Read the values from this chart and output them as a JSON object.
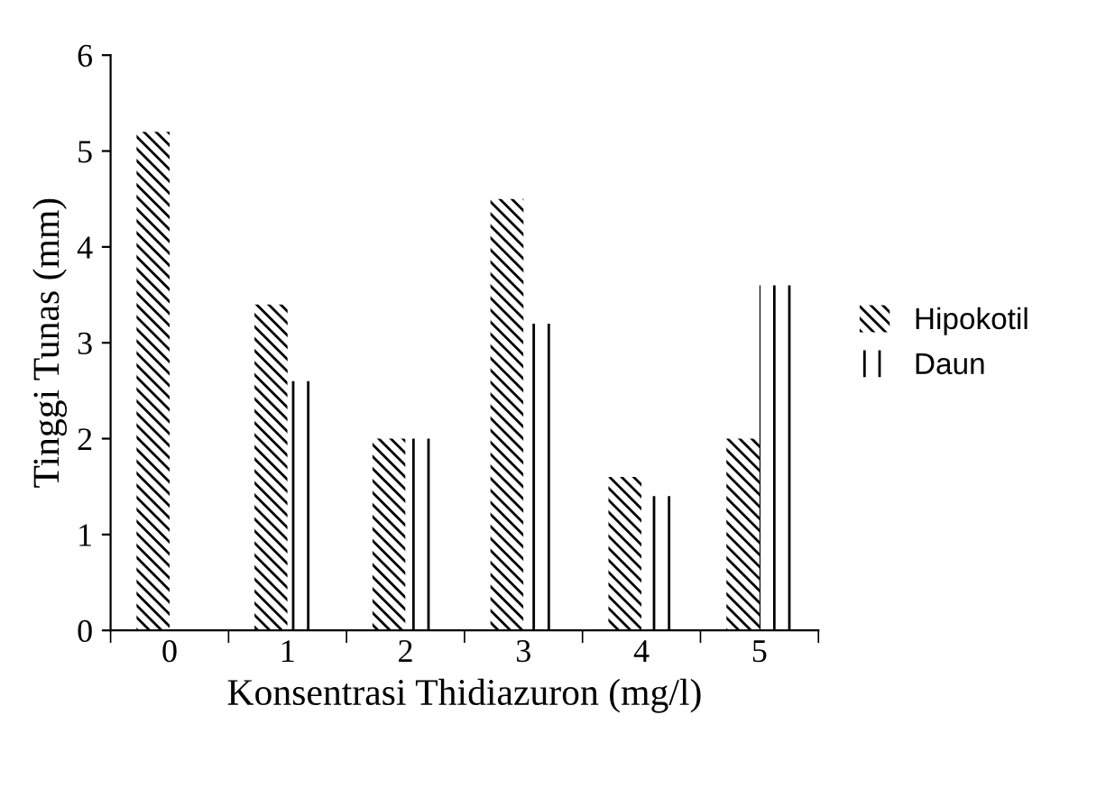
{
  "chart_data": {
    "type": "bar",
    "xlabel": "Konsentrasi Thidiazuron (mg/l)",
    "ylabel": "Tinggi Tunas (mm)",
    "categories": [
      "0",
      "1",
      "2",
      "3",
      "4",
      "5"
    ],
    "series": [
      {
        "name": "Hipokotil",
        "color": "#000000",
        "values": [
          5.2,
          3.4,
          2.0,
          4.5,
          1.6,
          2.0
        ]
      },
      {
        "name": "Daun",
        "color": "#000000",
        "values": [
          null,
          2.6,
          2.0,
          3.2,
          1.4,
          3.6
        ]
      }
    ],
    "ylim": [
      0,
      6
    ],
    "yticks": [
      0,
      1,
      2,
      3,
      4,
      5,
      6
    ],
    "grid": false,
    "legend": "right"
  }
}
